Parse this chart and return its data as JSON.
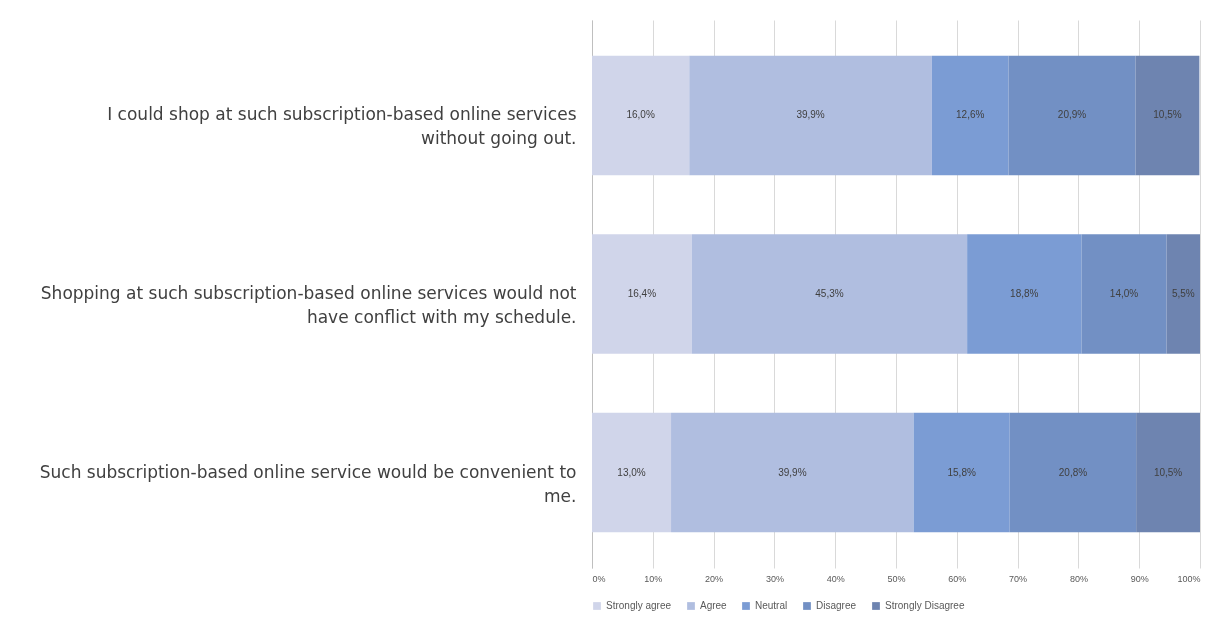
{
  "chart_data": {
    "type": "bar",
    "orientation": "horizontal",
    "stacked": true,
    "categories": [
      "I could shop at such subscription-based online services without going out.",
      "Shopping at such subscription-based online services would not have conflict with my schedule.",
      "Such subscription-based online service would be convenient to me."
    ],
    "series": [
      {
        "name": "Strongly agree",
        "color": "#d0d5ea",
        "values": [
          16.0,
          16.4,
          13.0
        ],
        "value_labels": [
          "16,0%",
          "16,4%",
          "13,0%"
        ]
      },
      {
        "name": "Agree",
        "color": "#b0bee0",
        "values": [
          39.9,
          45.3,
          39.9
        ],
        "value_labels": [
          "39,9%",
          "45,3%",
          "39,9%"
        ]
      },
      {
        "name": "Neutral",
        "color": "#7b9cd4",
        "values": [
          12.6,
          18.8,
          15.8
        ],
        "value_labels": [
          "12,6%",
          "18,8%",
          "15,8%"
        ]
      },
      {
        "name": "Disagree",
        "color": "#7290c4",
        "values": [
          20.9,
          14.0,
          20.8
        ],
        "value_labels": [
          "20,9%",
          "14,0%",
          "20,8%"
        ]
      },
      {
        "name": "Strongly Disagree",
        "color": "#6e84b0",
        "values": [
          10.5,
          5.5,
          10.5
        ],
        "value_labels": [
          "10,5%",
          "5,5%",
          "10,5%"
        ]
      }
    ],
    "xlim": [
      0,
      100
    ],
    "xticks": [
      {
        "value": 0,
        "label": "0%"
      },
      {
        "value": 10,
        "label": "10%"
      },
      {
        "value": 20,
        "label": "20%"
      },
      {
        "value": 30,
        "label": "30%"
      },
      {
        "value": 40,
        "label": "40%"
      },
      {
        "value": 50,
        "label": "50%"
      },
      {
        "value": 60,
        "label": "60%"
      },
      {
        "value": 70,
        "label": "70%"
      },
      {
        "value": 80,
        "label": "80%"
      },
      {
        "value": 90,
        "label": "90%"
      },
      {
        "value": 100,
        "label": "100%"
      }
    ],
    "grid": "x",
    "legend": "bottom"
  }
}
